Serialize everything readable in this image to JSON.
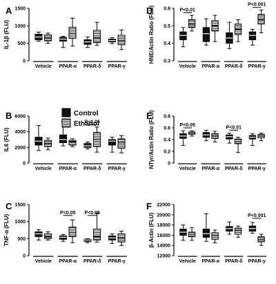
{
  "legend": {
    "control_label": "Control",
    "ethanol_label": "Ethanol"
  },
  "colors": {
    "control": "#111111",
    "ethanol_fill": "#ffffff",
    "ethanol_stripe": "#222222",
    "axis": "#000000"
  },
  "chart_data": [
    {
      "id": "A",
      "letter": "A",
      "type": "box",
      "ylabel": "IL-1β (FLU)",
      "ylim": [
        0,
        1500
      ],
      "yticks": [
        0,
        500,
        1000,
        1500
      ],
      "categories": [
        "Vehicle",
        "PPAR-α",
        "PPAR-δ",
        "PPAR-γ"
      ],
      "series": [
        {
          "name": "Control",
          "boxes": [
            {
              "min": 560,
              "q1": 600,
              "median": 680,
              "q3": 760,
              "max": 820
            },
            {
              "min": 380,
              "q1": 560,
              "median": 620,
              "q3": 670,
              "max": 700
            },
            {
              "min": 380,
              "q1": 470,
              "median": 540,
              "q3": 600,
              "max": 680
            },
            {
              "min": 490,
              "q1": 540,
              "median": 580,
              "q3": 620,
              "max": 660
            }
          ]
        },
        {
          "name": "Ethanol",
          "boxes": [
            {
              "min": 500,
              "q1": 570,
              "median": 650,
              "q3": 740,
              "max": 790
            },
            {
              "min": 420,
              "q1": 640,
              "median": 780,
              "q3": 960,
              "max": 1220
            },
            {
              "min": 440,
              "q1": 520,
              "median": 650,
              "q3": 870,
              "max": 1100
            },
            {
              "min": 320,
              "q1": 460,
              "median": 580,
              "q3": 730,
              "max": 880
            }
          ]
        }
      ],
      "significance": []
    },
    {
      "id": "D",
      "letter": "D",
      "type": "box",
      "ylabel": "HNE/Actin Ratio (FLU)",
      "ylim": [
        0.3,
        0.6
      ],
      "yticks": [
        0.3,
        0.4,
        0.5,
        0.6
      ],
      "categories": [
        "Vehicle",
        "PPAR-α",
        "PPAR-δ",
        "PPAR-γ"
      ],
      "series": [
        {
          "name": "Control",
          "boxes": [
            {
              "min": 0.38,
              "q1": 0.42,
              "median": 0.445,
              "q3": 0.465,
              "max": 0.49
            },
            {
              "min": 0.39,
              "q1": 0.41,
              "median": 0.455,
              "q3": 0.49,
              "max": 0.54
            },
            {
              "min": 0.37,
              "q1": 0.4,
              "median": 0.43,
              "q3": 0.46,
              "max": 0.52
            },
            {
              "min": 0.39,
              "q1": 0.42,
              "median": 0.445,
              "q3": 0.465,
              "max": 0.48
            }
          ]
        },
        {
          "name": "Ethanol",
          "boxes": [
            {
              "min": 0.47,
              "q1": 0.49,
              "median": 0.51,
              "q3": 0.535,
              "max": 0.56
            },
            {
              "min": 0.41,
              "q1": 0.47,
              "median": 0.5,
              "q3": 0.53,
              "max": 0.56
            },
            {
              "min": 0.41,
              "q1": 0.45,
              "median": 0.48,
              "q3": 0.51,
              "max": 0.535
            },
            {
              "min": 0.46,
              "q1": 0.51,
              "median": 0.535,
              "q3": 0.565,
              "max": 0.59
            }
          ]
        }
      ],
      "significance": [
        {
          "category": 0,
          "label": "P<0.01",
          "y": 0.575
        },
        {
          "category": 3,
          "label": "P<0.001",
          "y": 0.605
        }
      ]
    },
    {
      "id": "B",
      "letter": "B",
      "type": "box",
      "ylabel": "IL6 (FLU)",
      "ylim": [
        0,
        6000
      ],
      "yticks": [
        0,
        2000,
        4000,
        6000
      ],
      "categories": [
        "Vehicle",
        "PPAR-α",
        "PPAR-δ",
        "PPAR-γ"
      ],
      "series": [
        {
          "name": "Control",
          "boxes": [
            {
              "min": 1600,
              "q1": 2300,
              "median": 2800,
              "q3": 3300,
              "max": 4800
            },
            {
              "min": 2200,
              "q1": 2600,
              "median": 3000,
              "q3": 3600,
              "max": 5300
            },
            {
              "min": 1800,
              "q1": 2000,
              "median": 2200,
              "q3": 2500,
              "max": 2700
            },
            {
              "min": 1400,
              "q1": 2300,
              "median": 2800,
              "q3": 3000,
              "max": 3300
            }
          ]
        },
        {
          "name": "Ethanol",
          "boxes": [
            {
              "min": 1700,
              "q1": 2100,
              "median": 2500,
              "q3": 2900,
              "max": 3200
            },
            {
              "min": 2100,
              "q1": 2300,
              "median": 2700,
              "q3": 2900,
              "max": 3100
            },
            {
              "min": 1400,
              "q1": 2100,
              "median": 3000,
              "q3": 3900,
              "max": 4600
            },
            {
              "min": 1300,
              "q1": 1900,
              "median": 2600,
              "q3": 3100,
              "max": 3500
            }
          ]
        }
      ],
      "significance": [
        {
          "category": 2,
          "label": "P<0.05",
          "y": 4900
        }
      ]
    },
    {
      "id": "E",
      "letter": "E",
      "type": "box",
      "ylabel": "NTyr/Actin Ratio (FLU)",
      "ylim": [
        0,
        0.8
      ],
      "yticks": [
        0.0,
        0.2,
        0.4,
        0.6,
        0.8
      ],
      "categories": [
        "Vehicle",
        "PPAR-α",
        "PPAR-δ",
        "PPAR-γ"
      ],
      "series": [
        {
          "name": "Control",
          "boxes": [
            {
              "min": 0.3,
              "q1": 0.42,
              "median": 0.46,
              "q3": 0.5,
              "max": 0.55
            },
            {
              "min": 0.38,
              "q1": 0.44,
              "median": 0.48,
              "q3": 0.52,
              "max": 0.56
            },
            {
              "min": 0.34,
              "q1": 0.41,
              "median": 0.45,
              "q3": 0.48,
              "max": 0.51
            },
            {
              "min": 0.3,
              "q1": 0.41,
              "median": 0.44,
              "q3": 0.47,
              "max": 0.5
            }
          ]
        },
        {
          "name": "Ethanol",
          "boxes": [
            {
              "min": 0.46,
              "q1": 0.49,
              "median": 0.51,
              "q3": 0.53,
              "max": 0.55
            },
            {
              "min": 0.36,
              "q1": 0.42,
              "median": 0.46,
              "q3": 0.5,
              "max": 0.54
            },
            {
              "min": 0.18,
              "q1": 0.33,
              "median": 0.37,
              "q3": 0.41,
              "max": 0.44
            },
            {
              "min": 0.38,
              "q1": 0.43,
              "median": 0.46,
              "q3": 0.49,
              "max": 0.51
            }
          ]
        }
      ],
      "significance": [
        {
          "category": 0,
          "label": "P<0.05",
          "y": 0.6
        },
        {
          "category": 2,
          "label": "P<0.01",
          "y": 0.56
        }
      ]
    },
    {
      "id": "C",
      "letter": "C",
      "type": "box",
      "ylabel": "TNF-α (FLU)",
      "ylim": [
        0,
        1500
      ],
      "yticks": [
        0,
        500,
        1000,
        1500
      ],
      "categories": [
        "Vehicle",
        "PPAR-α",
        "PPAR-δ",
        "PPAR-γ"
      ],
      "series": [
        {
          "name": "Control",
          "boxes": [
            {
              "min": 460,
              "q1": 560,
              "median": 640,
              "q3": 700,
              "max": 760
            },
            {
              "min": 420,
              "q1": 480,
              "median": 540,
              "q3": 580,
              "max": 620
            },
            {
              "min": 380,
              "q1": 420,
              "median": 460,
              "q3": 480,
              "max": 500
            },
            {
              "min": 360,
              "q1": 460,
              "median": 520,
              "q3": 580,
              "max": 640
            }
          ]
        },
        {
          "name": "Ethanol",
          "boxes": [
            {
              "min": 460,
              "q1": 500,
              "median": 560,
              "q3": 640,
              "max": 700
            },
            {
              "min": 380,
              "q1": 560,
              "median": 680,
              "q3": 840,
              "max": 1050
            },
            {
              "min": 400,
              "q1": 460,
              "median": 560,
              "q3": 780,
              "max": 1250
            },
            {
              "min": 300,
              "q1": 400,
              "median": 520,
              "q3": 640,
              "max": 720
            }
          ]
        }
      ],
      "significance": [
        {
          "category": 1,
          "label": "P<0.05",
          "y": 1180
        },
        {
          "category": 2,
          "label": "P<0.05",
          "y": 1180
        }
      ]
    },
    {
      "id": "F",
      "letter": "F",
      "type": "box",
      "ylabel": "β-Actin (FLU)",
      "ylim": [
        12000,
        22000
      ],
      "yticks": [
        12000,
        14000,
        16000,
        18000,
        20000,
        22000
      ],
      "categories": [
        "Vehicle",
        "PPAR-α",
        "PPAR-δ",
        "PPAR-γ"
      ],
      "series": [
        {
          "name": "Control",
          "boxes": [
            {
              "min": 15000,
              "q1": 16000,
              "median": 16600,
              "q3": 17200,
              "max": 18000
            },
            {
              "min": 14800,
              "q1": 15600,
              "median": 16300,
              "q3": 17200,
              "max": 20200
            },
            {
              "min": 16200,
              "q1": 16800,
              "median": 17300,
              "q3": 17700,
              "max": 18600
            },
            {
              "min": 16400,
              "q1": 16800,
              "median": 17300,
              "q3": 17800,
              "max": 18500
            }
          ]
        },
        {
          "name": "Ethanol",
          "boxes": [
            {
              "min": 15000,
              "q1": 15700,
              "median": 16200,
              "q3": 16600,
              "max": 17500
            },
            {
              "min": 14500,
              "q1": 15200,
              "median": 15900,
              "q3": 16500,
              "max": 17000
            },
            {
              "min": 15600,
              "q1": 16200,
              "median": 16900,
              "q3": 17400,
              "max": 17800
            },
            {
              "min": 14000,
              "q1": 14700,
              "median": 15200,
              "q3": 15700,
              "max": 16200
            }
          ]
        }
      ],
      "significance": [
        {
          "category": 3,
          "label": "P<0.001",
          "y": 19300
        }
      ]
    }
  ]
}
